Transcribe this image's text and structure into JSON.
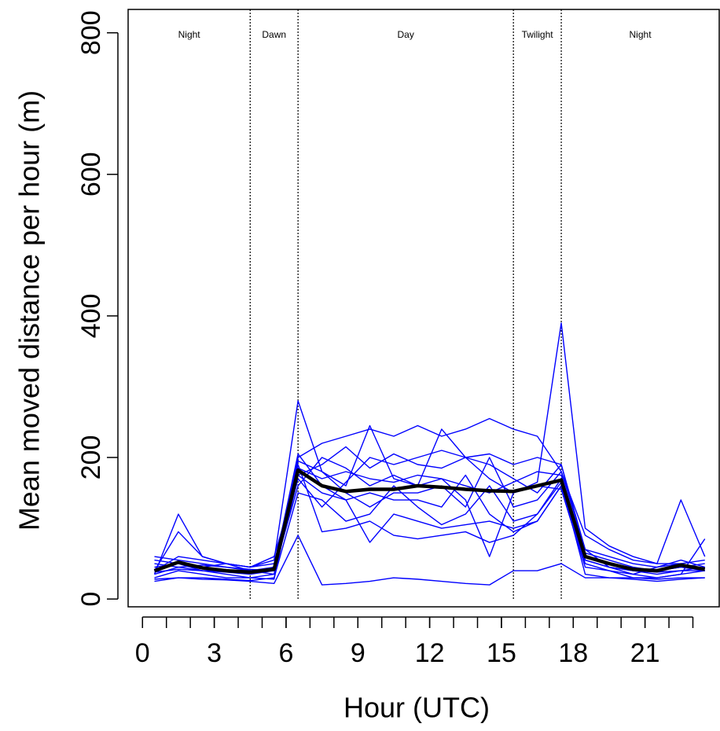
{
  "chart_data": {
    "type": "line",
    "x_label": "Hour (UTC)",
    "y_label": "Mean moved distance per hour (m)",
    "x": [
      0.5,
      1.5,
      2.5,
      3.5,
      4.5,
      5.5,
      6.5,
      7.5,
      8.5,
      9.5,
      10.5,
      11.5,
      12.5,
      13.5,
      14.5,
      15.5,
      16.5,
      17.5,
      18.5,
      19.5,
      20.5,
      21.5,
      22.5,
      23.5
    ],
    "xlim": [
      -0.6,
      24.1
    ],
    "ylim": [
      -11,
      833
    ],
    "xticks": [
      0,
      3,
      6,
      9,
      12,
      15,
      18,
      21
    ],
    "xminor_ticks": [
      0,
      1,
      2,
      3,
      4,
      5,
      6,
      7,
      8,
      9,
      10,
      11,
      12,
      13,
      14,
      15,
      16,
      17,
      18,
      19,
      20,
      21,
      22,
      23
    ],
    "yticks": [
      0,
      200,
      400,
      600,
      800
    ],
    "vlines": [
      4.5,
      6.5,
      15.5,
      17.5
    ],
    "period_labels": [
      "Night",
      "Dawn",
      "Day",
      "Twilight",
      "Night"
    ],
    "series": [
      {
        "color": "#0000ff",
        "values": [
          35,
          120,
          60,
          50,
          45,
          55,
          280,
          180,
          160,
          245,
          170,
          160,
          240,
          200,
          170,
          150,
          165,
          390,
          100,
          75,
          60,
          50,
          50,
          40
        ]
      },
      {
        "color": "#0000ff",
        "values": [
          25,
          30,
          28,
          27,
          25,
          22,
          90,
          20,
          22,
          25,
          30,
          28,
          25,
          22,
          20,
          40,
          40,
          50,
          30,
          30,
          30,
          28,
          30,
          30
        ]
      },
      {
        "color": "#0000ff",
        "values": [
          60,
          55,
          50,
          45,
          40,
          45,
          200,
          220,
          230,
          240,
          230,
          245,
          230,
          240,
          255,
          240,
          230,
          180,
          90,
          70,
          55,
          50,
          140,
          60
        ]
      },
      {
        "color": "#0000ff",
        "values": [
          40,
          95,
          60,
          50,
          40,
          35,
          190,
          95,
          100,
          110,
          90,
          85,
          90,
          95,
          80,
          90,
          120,
          170,
          55,
          45,
          35,
          30,
          35,
          85
        ]
      },
      {
        "color": "#0000ff",
        "values": [
          30,
          40,
          35,
          30,
          30,
          28,
          185,
          170,
          180,
          170,
          165,
          175,
          170,
          160,
          150,
          165,
          180,
          175,
          60,
          50,
          40,
          35,
          40,
          45
        ]
      },
      {
        "color": "#0000ff",
        "values": [
          45,
          50,
          40,
          38,
          35,
          40,
          175,
          150,
          140,
          80,
          120,
          110,
          100,
          105,
          110,
          100,
          110,
          160,
          50,
          40,
          30,
          30,
          35,
          40
        ]
      },
      {
        "color": "#0000ff",
        "values": [
          35,
          45,
          40,
          35,
          30,
          35,
          170,
          130,
          165,
          200,
          190,
          200,
          210,
          200,
          190,
          170,
          150,
          190,
          65,
          55,
          45,
          40,
          45,
          50
        ]
      },
      {
        "color": "#0000ff",
        "values": [
          50,
          45,
          48,
          45,
          42,
          40,
          160,
          200,
          185,
          160,
          175,
          160,
          170,
          140,
          60,
          150,
          160,
          155,
          45,
          40,
          35,
          45,
          50,
          55
        ]
      },
      {
        "color": "#0000ff",
        "values": [
          28,
          30,
          30,
          28,
          26,
          30,
          150,
          140,
          110,
          120,
          160,
          130,
          105,
          120,
          160,
          110,
          120,
          165,
          35,
          30,
          28,
          25,
          28,
          30
        ]
      },
      {
        "color": "#0000ff",
        "values": [
          40,
          60,
          55,
          50,
          45,
          50,
          195,
          180,
          150,
          130,
          150,
          150,
          160,
          130,
          200,
          130,
          140,
          180,
          70,
          60,
          50,
          45,
          55,
          45
        ]
      },
      {
        "color": "#0000ff",
        "values": [
          38,
          42,
          40,
          40,
          38,
          45,
          205,
          160,
          140,
          150,
          140,
          140,
          130,
          175,
          120,
          95,
          110,
          160,
          55,
          45,
          40,
          40,
          45,
          40
        ]
      },
      {
        "color": "#0000ff",
        "values": [
          55,
          50,
          45,
          50,
          45,
          60,
          175,
          190,
          215,
          185,
          205,
          190,
          185,
          200,
          205,
          190,
          200,
          190,
          70,
          45,
          40,
          38,
          40,
          40
        ]
      },
      {
        "color": "#000000",
        "values": [
          40,
          52,
          44,
          40,
          38,
          42,
          182,
          160,
          152,
          155,
          155,
          160,
          158,
          155,
          153,
          152,
          160,
          168,
          60,
          50,
          42,
          40,
          48,
          42
        ]
      }
    ]
  }
}
